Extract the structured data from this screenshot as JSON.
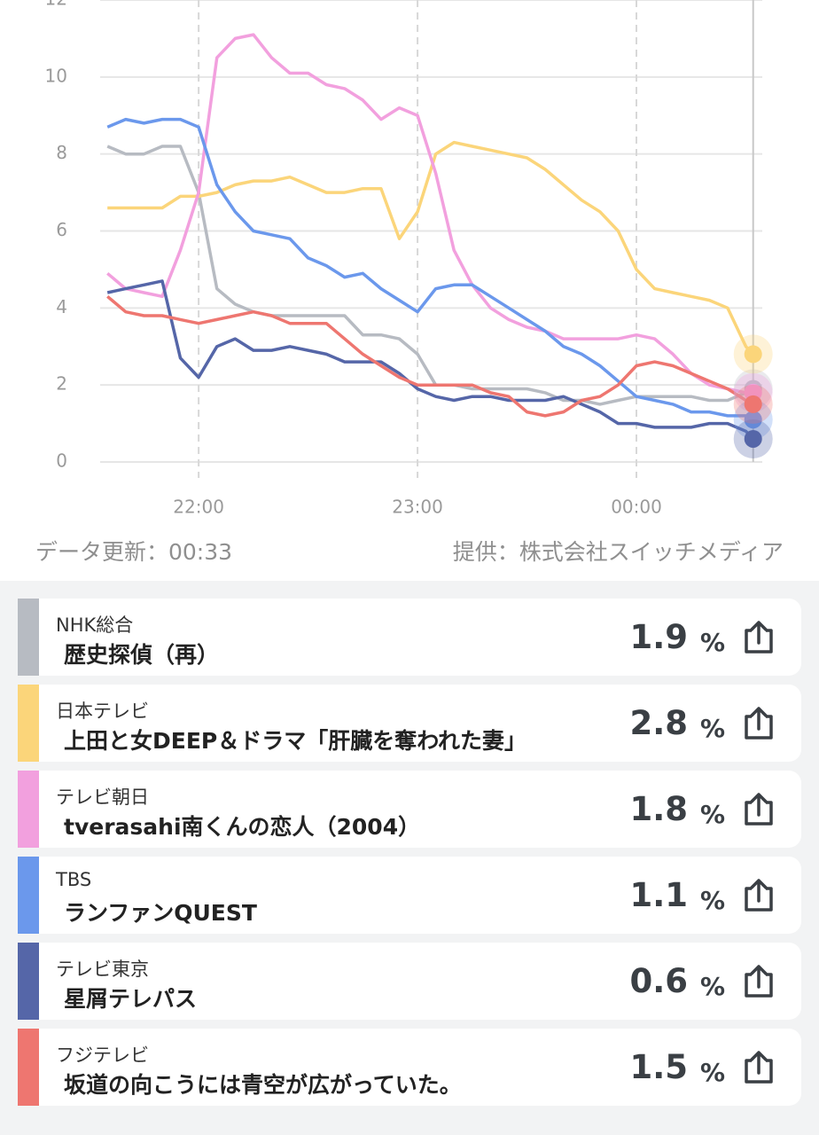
{
  "chart_data": {
    "type": "line",
    "x": [
      1295,
      1300,
      1305,
      1310,
      1315,
      1320,
      1325,
      1330,
      1335,
      1340,
      1345,
      1350,
      1355,
      1360,
      1365,
      1370,
      1375,
      1380,
      1385,
      1390,
      1395,
      1400,
      1405,
      1410,
      1415,
      1420,
      1425,
      1430,
      1435,
      1440,
      1445,
      1450,
      1455,
      1460,
      1465,
      1470,
      1472
    ],
    "xlim": [
      1293,
      1474.5
    ],
    "xticks": [
      {
        "value": 1320,
        "label": "22:00"
      },
      {
        "value": 1380,
        "label": "23:00"
      },
      {
        "value": 1440,
        "label": "00:00"
      }
    ],
    "ylim": [
      0,
      12
    ],
    "yticks": [
      0,
      2,
      4,
      6,
      8,
      10,
      12
    ],
    "grid": true,
    "series": [
      {
        "name": "NHK総合",
        "color": "#b7bbc2",
        "values": [
          8.2,
          8.0,
          8.0,
          8.2,
          8.2,
          7.0,
          4.5,
          4.1,
          3.9,
          3.8,
          3.8,
          3.8,
          3.8,
          3.8,
          3.3,
          3.3,
          3.2,
          2.8,
          2.0,
          2.0,
          1.9,
          1.9,
          1.9,
          1.9,
          1.8,
          1.6,
          1.6,
          1.5,
          1.6,
          1.7,
          1.7,
          1.7,
          1.7,
          1.6,
          1.6,
          1.8,
          1.9
        ]
      },
      {
        "name": "日本テレビ",
        "color": "#fbd57a",
        "values": [
          6.6,
          6.6,
          6.6,
          6.6,
          6.9,
          6.9,
          7.0,
          7.2,
          7.3,
          7.3,
          7.4,
          7.2,
          7.0,
          7.0,
          7.1,
          7.1,
          5.8,
          6.5,
          8.0,
          8.3,
          8.2,
          8.1,
          8.0,
          7.9,
          7.6,
          7.2,
          6.8,
          6.5,
          6.0,
          5.0,
          4.5,
          4.4,
          4.3,
          4.2,
          4.0,
          3.0,
          2.8
        ]
      },
      {
        "name": "テレビ朝日",
        "color": "#f2a0de",
        "values": [
          4.9,
          4.5,
          4.4,
          4.3,
          5.5,
          7.0,
          10.5,
          11.0,
          11.1,
          10.5,
          10.1,
          10.1,
          9.8,
          9.7,
          9.4,
          8.9,
          9.2,
          9.0,
          7.5,
          5.5,
          4.6,
          4.0,
          3.7,
          3.5,
          3.4,
          3.2,
          3.2,
          3.2,
          3.2,
          3.3,
          3.2,
          2.8,
          2.3,
          2.0,
          1.9,
          1.8,
          1.8
        ]
      },
      {
        "name": "TBS",
        "color": "#6b98ec",
        "values": [
          8.7,
          8.9,
          8.8,
          8.9,
          8.9,
          8.7,
          7.2,
          6.5,
          6.0,
          5.9,
          5.8,
          5.3,
          5.1,
          4.8,
          4.9,
          4.5,
          4.2,
          3.9,
          4.5,
          4.6,
          4.6,
          4.3,
          4.0,
          3.7,
          3.4,
          3.0,
          2.8,
          2.5,
          2.1,
          1.7,
          1.6,
          1.5,
          1.3,
          1.3,
          1.2,
          1.2,
          1.1
        ]
      },
      {
        "name": "テレビ東京",
        "color": "#5566a8",
        "values": [
          4.4,
          4.5,
          4.6,
          4.7,
          2.7,
          2.2,
          3.0,
          3.2,
          2.9,
          2.9,
          3.0,
          2.9,
          2.8,
          2.6,
          2.6,
          2.6,
          2.3,
          1.9,
          1.7,
          1.6,
          1.7,
          1.7,
          1.6,
          1.6,
          1.6,
          1.7,
          1.5,
          1.3,
          1.0,
          1.0,
          0.9,
          0.9,
          0.9,
          1.0,
          1.0,
          0.8,
          0.6
        ]
      },
      {
        "name": "フジテレビ",
        "color": "#ee7670",
        "values": [
          4.3,
          3.9,
          3.8,
          3.8,
          3.7,
          3.6,
          3.7,
          3.8,
          3.9,
          3.8,
          3.6,
          3.6,
          3.6,
          3.2,
          2.8,
          2.5,
          2.2,
          2.0,
          2.0,
          2.0,
          2.0,
          1.8,
          1.7,
          1.3,
          1.2,
          1.3,
          1.6,
          1.7,
          2.0,
          2.5,
          2.6,
          2.5,
          2.3,
          2.1,
          1.9,
          1.6,
          1.5
        ]
      }
    ]
  },
  "footer": {
    "updated": "データ更新：00:33",
    "provider": "提供：株式会社スイッチメディア"
  },
  "list": {
    "rows": [
      {
        "channel": "NHK総合",
        "program": "歴史探偵（再）",
        "rating": "1.9",
        "unit": "%"
      },
      {
        "channel": "日本テレビ",
        "program": "上田と女DEEP＆ドラマ「肝臓を奪われた妻」",
        "rating": "2.8",
        "unit": "%"
      },
      {
        "channel": "テレビ朝日",
        "program": "tverasahi南くんの恋人（2004）",
        "rating": "1.8",
        "unit": "%"
      },
      {
        "channel": "TBS",
        "program": "ランファンQUEST",
        "rating": "1.1",
        "unit": "%"
      },
      {
        "channel": "テレビ東京",
        "program": "星屑テレパス",
        "rating": "0.6",
        "unit": "%"
      },
      {
        "channel": "フジテレビ",
        "program": "坂道の向こうには青空が広がっていた。",
        "rating": "1.5",
        "unit": "%"
      }
    ]
  }
}
